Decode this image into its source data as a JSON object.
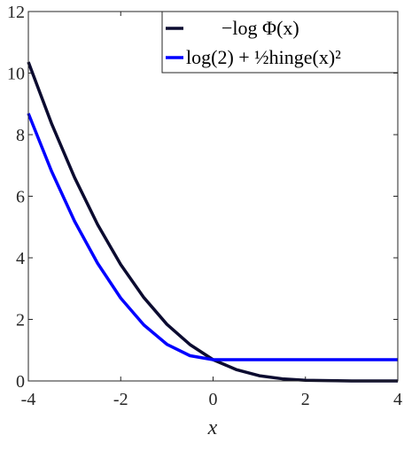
{
  "chart_data": {
    "type": "line",
    "x_label": "x",
    "x": [
      -4,
      -3.5,
      -3,
      -2.5,
      -2,
      -1.5,
      -1,
      -0.5,
      0,
      0.5,
      1,
      1.5,
      2,
      2.5,
      3,
      3.5,
      4
    ],
    "series": [
      {
        "name": "−log Φ(x)",
        "color": "#0b0b30",
        "values": [
          10.36,
          8.37,
          6.61,
          5.08,
          3.78,
          2.71,
          1.84,
          1.18,
          0.69,
          0.37,
          0.17,
          0.07,
          0.02,
          0.01,
          0,
          0,
          0
        ]
      },
      {
        "name": "log(2) + ½hinge(x)²",
        "color": "#0000ff",
        "values": [
          8.69,
          6.82,
          5.19,
          3.82,
          2.69,
          1.82,
          1.19,
          0.82,
          0.69,
          0.69,
          0.69,
          0.69,
          0.69,
          0.69,
          0.69,
          0.69,
          0.69
        ]
      }
    ],
    "xlim": [
      -4,
      4
    ],
    "xticks": [
      -4,
      -2,
      0,
      2,
      4
    ],
    "ylim": [
      0,
      12
    ],
    "yticks": [
      0,
      2,
      4,
      6,
      8,
      10,
      12
    ],
    "legend": "upper right"
  }
}
